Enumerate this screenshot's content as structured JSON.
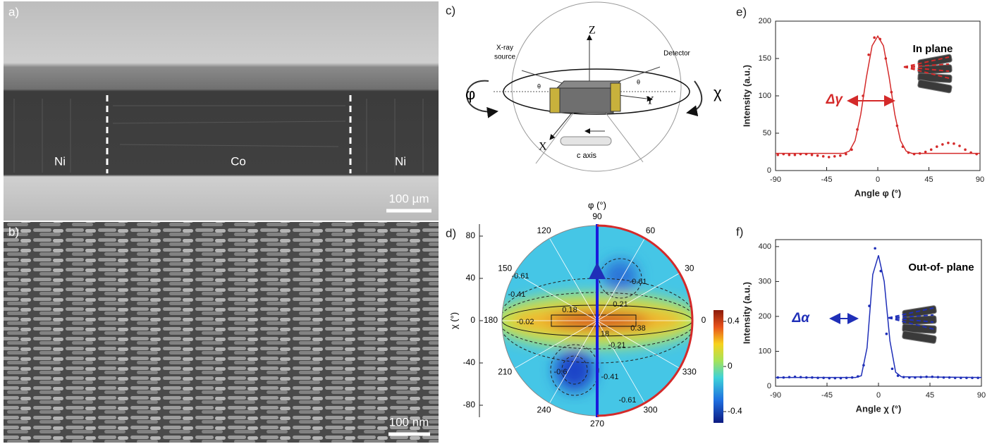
{
  "figure": {
    "panel_a": {
      "label": "a)",
      "regions": [
        "Ni",
        "Co",
        "Ni"
      ],
      "scale_bar": "100 µm"
    },
    "panel_b": {
      "label": "b)",
      "scale_bar": "100 nm"
    },
    "panel_c": {
      "label": "c)",
      "axes": [
        "Z",
        "Y",
        "X"
      ],
      "source_lines": [
        "X-ray",
        "source"
      ],
      "detector": "Detector",
      "theta": "θ",
      "phi": "φ",
      "chi": "χ",
      "c_axis": "c axis"
    },
    "panel_d": {
      "label": "d)",
      "phi_label": "φ (°)",
      "chi_label": "χ (°)",
      "angles": [
        90,
        60,
        30,
        0,
        330,
        300,
        270,
        240,
        210,
        180,
        150,
        120
      ],
      "chi_ticks": [
        80,
        40,
        0,
        -40,
        -80
      ],
      "chi_lim": [
        -90,
        90
      ],
      "colorbar_ticks": [
        0.4,
        0,
        -0.4
      ],
      "colorbar_lim": [
        -0.5,
        0.5
      ],
      "contour_labels": [
        -0.61,
        -0.41,
        -0.02,
        0.18,
        0.21,
        -0.61,
        0.38,
        18,
        -0.21,
        -0.41,
        -0.61,
        -0.6
      ]
    }
  },
  "chart_data": [
    {
      "type": "line",
      "label": "e)",
      "x_label": "Angle φ (°)",
      "y_label": "Intensity (a.u.)",
      "xlim": [
        -90,
        90
      ],
      "xticks": [
        -90,
        -45,
        0,
        45,
        90
      ],
      "ylim": [
        0,
        200
      ],
      "yticks": [
        0,
        50,
        100,
        150,
        200
      ],
      "color": "#d42a2a",
      "annotations": {
        "width": "Δγ",
        "inset": "In plane"
      },
      "series": [
        {
          "style": "points",
          "x": [
            -88,
            -83,
            -78,
            -73,
            -68,
            -63,
            -58,
            -53,
            -48,
            -43,
            -38,
            -33,
            -28,
            -23,
            -18,
            -13,
            -8,
            -3,
            2,
            7,
            12,
            17,
            22,
            27,
            32,
            37,
            42,
            47,
            52,
            57,
            62,
            67,
            72,
            77,
            82,
            87
          ],
          "values": [
            21,
            22,
            21,
            21,
            22,
            22,
            21,
            20,
            19,
            18,
            19,
            20,
            22,
            28,
            55,
            100,
            155,
            178,
            176,
            150,
            105,
            60,
            32,
            24,
            22,
            23,
            25,
            28,
            32,
            35,
            37,
            36,
            33,
            28,
            24,
            22
          ]
        },
        {
          "style": "line",
          "x": [
            -90,
            -60,
            -30,
            -25,
            -20,
            -15,
            -10,
            -5,
            0,
            5,
            10,
            15,
            20,
            25,
            30,
            60,
            90
          ],
          "values": [
            23,
            23,
            23,
            26,
            40,
            75,
            125,
            167,
            180,
            167,
            125,
            75,
            40,
            26,
            23,
            23,
            23
          ]
        }
      ]
    },
    {
      "type": "line",
      "label": "f)",
      "x_label": "Angle χ (°)",
      "y_label": "Intensity (a.u.)",
      "xlim": [
        -90,
        90
      ],
      "xticks": [
        -90,
        -45,
        0,
        45,
        90
      ],
      "ylim": [
        0,
        420
      ],
      "yticks": [
        0,
        100,
        200,
        300,
        400
      ],
      "color": "#1f2fb8",
      "annotations": {
        "width": "Δα",
        "inset": "Out-of- plane"
      },
      "series": [
        {
          "style": "points",
          "x": [
            -88,
            -83,
            -78,
            -73,
            -68,
            -63,
            -58,
            -53,
            -48,
            -43,
            -38,
            -33,
            -28,
            -23,
            -18,
            -13,
            -8,
            -3,
            2,
            7,
            12,
            17,
            22,
            27,
            32,
            37,
            42,
            47,
            52,
            57,
            62,
            67,
            72,
            77,
            82,
            87
          ],
          "values": [
            25,
            25,
            26,
            27,
            26,
            25,
            25,
            24,
            24,
            23,
            23,
            23,
            24,
            25,
            28,
            60,
            230,
            395,
            330,
            150,
            50,
            30,
            26,
            25,
            25,
            26,
            27,
            27,
            26,
            25,
            25,
            24,
            24,
            24,
            24,
            24
          ]
        },
        {
          "style": "line",
          "x": [
            -90,
            -20,
            -15,
            -10,
            -5,
            0,
            5,
            10,
            15,
            20,
            90
          ],
          "values": [
            25,
            25,
            30,
            110,
            320,
            375,
            300,
            130,
            40,
            27,
            25
          ]
        }
      ]
    }
  ]
}
